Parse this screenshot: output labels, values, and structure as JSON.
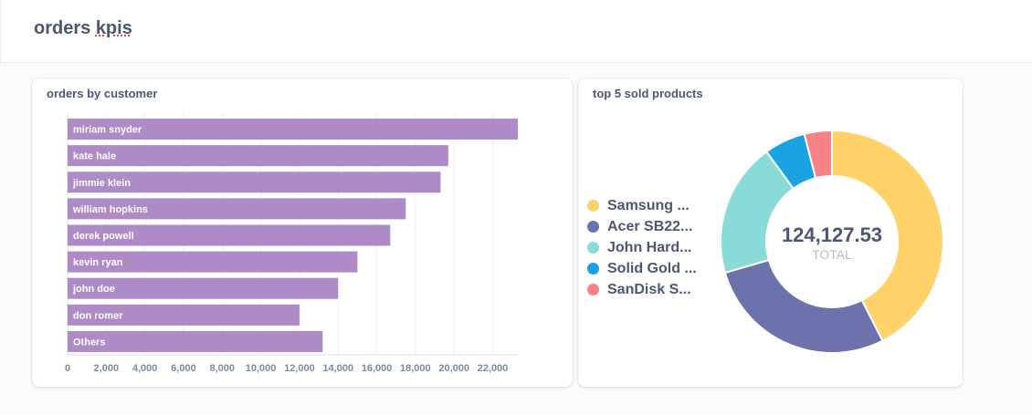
{
  "dashboard": {
    "title_prefix": "orders ",
    "title_word": "kpis"
  },
  "cards": [
    {
      "title": "orders by customer",
      "chart_data": {
        "type": "bar",
        "orientation": "horizontal",
        "categories": [
          "miriam snyder",
          "kate hale",
          "jimmie klein",
          "william hopkins",
          "derek powell",
          "kevin ryan",
          "john doe",
          "don romer",
          "Others"
        ],
        "values": [
          23300,
          19700,
          19300,
          17500,
          16700,
          15000,
          14000,
          12000,
          13200
        ],
        "xlim": [
          0,
          23300
        ],
        "xticks": [
          0,
          2000,
          4000,
          6000,
          8000,
          10000,
          12000,
          14000,
          16000,
          18000,
          20000,
          22000
        ],
        "xtick_labels": [
          "0",
          "2,000",
          "4,000",
          "6,000",
          "8,000",
          "10,000",
          "12,000",
          "14,000",
          "16,000",
          "18,000",
          "20,000",
          "22,000"
        ],
        "grid": true,
        "color": "#ae8bc6"
      }
    },
    {
      "title": "top 5 sold products",
      "chart_data": {
        "type": "pie",
        "donut": true,
        "legend_position": "left",
        "labels": [
          "Samsung ...",
          "Acer SB22...",
          "John Hard...",
          "Solid Gold ...",
          "SanDisk S..."
        ],
        "values": [
          42.5,
          28.0,
          19.5,
          6.0,
          4.0
        ],
        "colors": [
          "#ffd26a",
          "#6c73ac",
          "#88dbd9",
          "#1aa3e0",
          "#f98287"
        ],
        "total_value": "124,127.53",
        "total_label": "TOTAL"
      }
    }
  ]
}
